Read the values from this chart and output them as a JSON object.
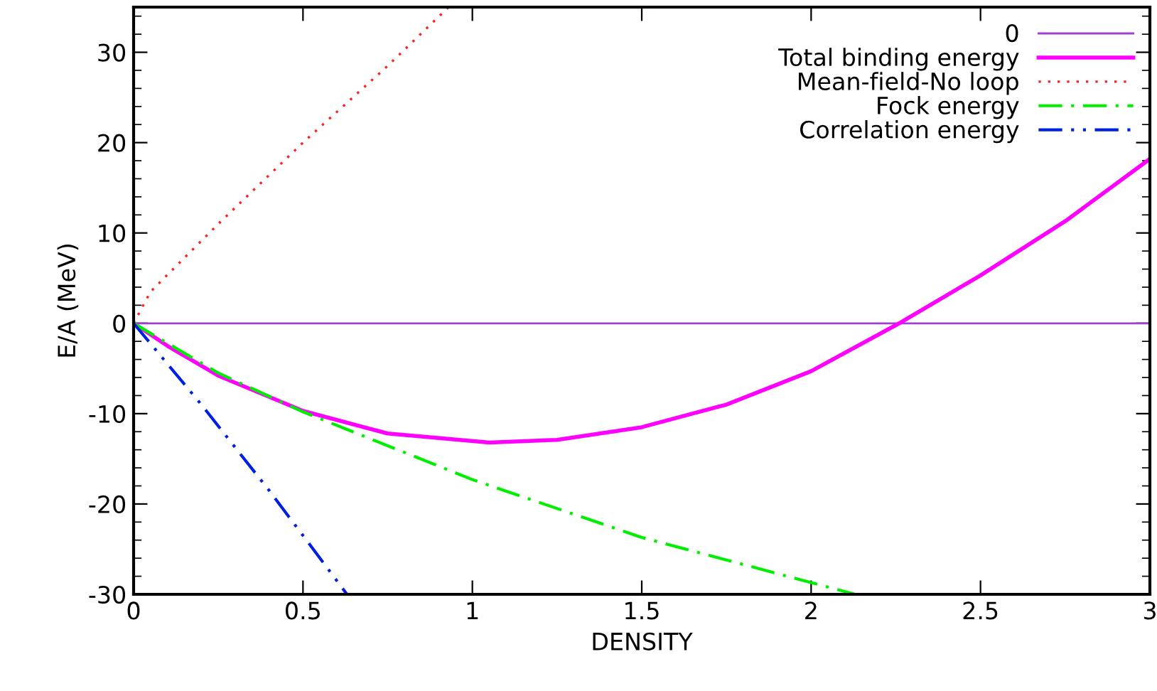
{
  "chart_data": {
    "type": "line",
    "xlabel": "DENSITY",
    "ylabel": "E/A (MeV)",
    "xlim": [
      0,
      3
    ],
    "ylim": [
      -30,
      35
    ],
    "xticks": [
      0,
      0.5,
      1,
      1.5,
      2,
      2.5,
      3
    ],
    "yticks": [
      -30,
      -20,
      -10,
      0,
      10,
      20,
      30
    ],
    "grid": false,
    "legend": "top right",
    "series": [
      {
        "name": "0",
        "color": "#a040d0",
        "line_style": "solid",
        "x": [
          0,
          3
        ],
        "values": [
          0,
          0
        ]
      },
      {
        "name": "Total binding energy",
        "color": "#ff00ff",
        "line_style": "solid",
        "x": [
          0,
          0.1,
          0.25,
          0.5,
          0.75,
          1.05,
          1.25,
          1.5,
          1.75,
          2,
          2.26,
          2.5,
          2.75,
          3
        ],
        "values": [
          0,
          -2.5,
          -5.8,
          -9.7,
          -12.2,
          -13.2,
          -12.9,
          -11.5,
          -9.0,
          -5.3,
          0,
          5.3,
          11.3,
          18.2
        ]
      },
      {
        "name": "Mean-field-No loop",
        "color": "#ff2020",
        "line_style": "dotted",
        "x": [
          0,
          0.05,
          0.25,
          0.5,
          0.75,
          0.93
        ],
        "values": [
          0,
          3.5,
          11,
          20,
          28.5,
          35
        ]
      },
      {
        "name": "Fock energy",
        "color": "#00ee00",
        "line_style": "dashdot",
        "x": [
          0,
          0.25,
          0.5,
          1,
          1.5,
          2,
          2.13
        ],
        "values": [
          0,
          -5.5,
          -9.8,
          -17.3,
          -23.7,
          -28.7,
          -30
        ]
      },
      {
        "name": "Correlation energy",
        "color": "#0020e0",
        "line_style": "dashdotdot",
        "x": [
          0,
          0.2,
          0.4,
          0.63
        ],
        "values": [
          0,
          -9,
          -18.5,
          -30
        ]
      }
    ]
  }
}
